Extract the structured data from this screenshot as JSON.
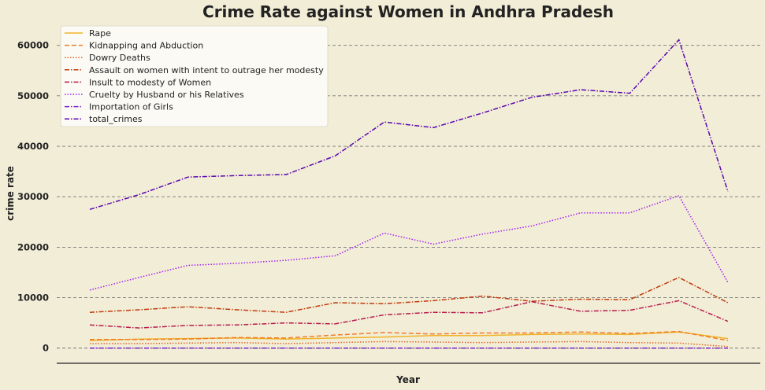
{
  "chart_data": {
    "type": "line",
    "title": "Crime Rate against Women in Andhra Pradesh",
    "xlabel": "Year",
    "ylabel": "crime rate",
    "x": [
      1,
      2,
      3,
      4,
      5,
      6,
      7,
      8,
      9,
      10,
      11,
      12,
      13,
      14
    ],
    "ylim": [
      -3000,
      64000
    ],
    "yticks": [
      0,
      10000,
      20000,
      30000,
      40000,
      50000,
      60000
    ],
    "ytick_labels": [
      "0",
      "10000",
      "20000",
      "30000",
      "40000",
      "50000",
      "60000"
    ],
    "grid": "horizontal dashed",
    "legend_position": "top-left",
    "series": [
      {
        "name": "Rape",
        "color": "#f0b429",
        "dash": "solid",
        "values": [
          1500,
          1800,
          1900,
          2000,
          1800,
          2000,
          2200,
          2500,
          2500,
          2700,
          2800,
          2700,
          3200,
          1900
        ]
      },
      {
        "name": "Kidnapping and Abduction",
        "color": "#ef7d2a",
        "dash": "dashed",
        "values": [
          1700,
          1700,
          1800,
          2100,
          2000,
          2600,
          3100,
          2800,
          3000,
          3000,
          3200,
          2900,
          3300,
          1500
        ]
      },
      {
        "name": "Dowry Deaths",
        "color": "#e0671f",
        "dash": "dotted",
        "values": [
          900,
          900,
          1000,
          1100,
          900,
          1100,
          1300,
          1200,
          1100,
          1200,
          1300,
          1100,
          1000,
          300
        ]
      },
      {
        "name": "Assault on women with intent to outrage her modesty",
        "color": "#c13a0c",
        "dash": "dashdot",
        "values": [
          7100,
          7600,
          8200,
          7600,
          7100,
          9000,
          8800,
          9400,
          10300,
          9300,
          9700,
          9600,
          14000,
          9000
        ]
      },
      {
        "name": "Insult to modesty of Women",
        "color": "#b51c4d",
        "dash": "dashdot",
        "values": [
          4600,
          4000,
          4500,
          4600,
          5000,
          4800,
          6600,
          7100,
          7000,
          9200,
          7300,
          7500,
          9400,
          5300
        ]
      },
      {
        "name": "Cruelty by Husband or his Relatives",
        "color": "#a020f0",
        "dash": "dotted",
        "values": [
          11500,
          14000,
          16400,
          16800,
          17400,
          18300,
          22800,
          20600,
          22600,
          24200,
          26800,
          26800,
          30200,
          13000
        ]
      },
      {
        "name": "Importation of Girls",
        "color": "#7a24c9",
        "dash": "dashdot",
        "values": [
          0,
          0,
          0,
          0,
          0,
          0,
          0,
          0,
          0,
          0,
          0,
          0,
          0,
          0
        ]
      },
      {
        "name": "total_crimes",
        "color": "#5b06b0",
        "dash": "dashdot",
        "values": [
          27500,
          30400,
          33900,
          34200,
          34400,
          38100,
          44800,
          43700,
          46600,
          49700,
          51200,
          50500,
          61100,
          31000
        ]
      }
    ]
  }
}
